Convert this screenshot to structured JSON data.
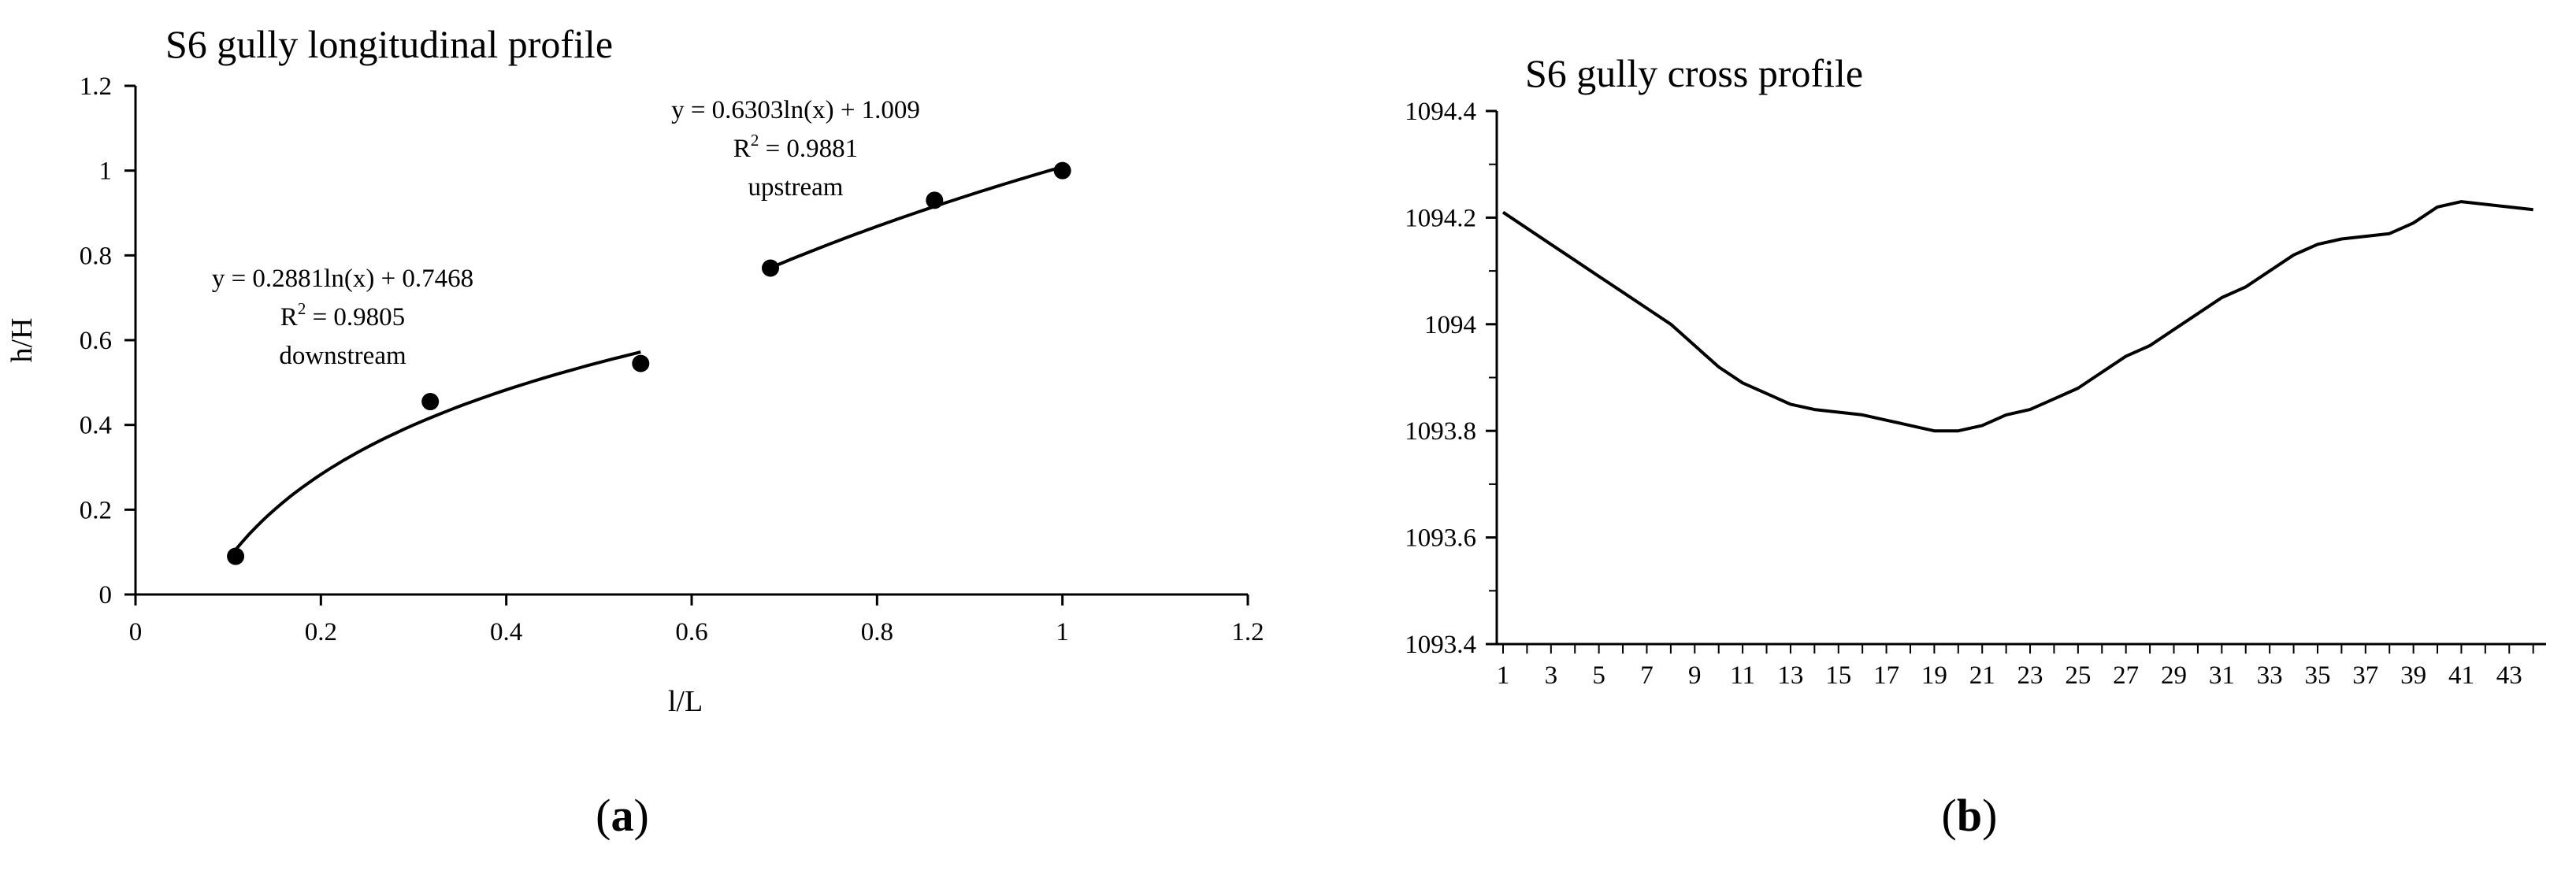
{
  "chart_data": [
    {
      "type": "scatter",
      "title": "S6 gully longitudinal profile",
      "xlabel": "l/L",
      "ylabel": "h/H",
      "xlim": [
        0,
        1.2
      ],
      "ylim": [
        0,
        1.2
      ],
      "x_ticks": [
        "0",
        "0.2",
        "0.4",
        "0.6",
        "0.8",
        "1",
        "1.2"
      ],
      "y_ticks": [
        "0",
        "0.2",
        "0.4",
        "0.6",
        "0.8",
        "1",
        "1.2"
      ],
      "grid": false,
      "series": [
        {
          "points": [
            [
              0.108,
              0.09
            ],
            [
              0.318,
              0.455
            ],
            [
              0.545,
              0.545
            ],
            [
              0.685,
              0.77
            ],
            [
              0.862,
              0.93
            ],
            [
              1.0,
              1.0
            ]
          ]
        }
      ],
      "trendlines": [
        {
          "a": 0.2881,
          "b": 0.7468,
          "x_range": [
            0.108,
            0.545
          ],
          "equation": "y = 0.2881ln(x) + 0.7468",
          "r2_label": "R",
          "r2_value": " = 0.9805",
          "label": "downstream"
        },
        {
          "a": 0.6303,
          "b": 1.009,
          "x_range": [
            0.685,
            1.0
          ],
          "equation": "y = 0.6303ln(x) + 1.009",
          "r2_label": "R",
          "r2_value": " = 0.9881",
          "label": "upstream"
        }
      ],
      "panel_label": "a"
    },
    {
      "type": "line",
      "title": "S6 gully cross profile",
      "ylim": [
        1093.4,
        1094.4
      ],
      "y_ticks": [
        "1093.4",
        "1093.6",
        "1093.8",
        "1094",
        "1094.2",
        "1094.4"
      ],
      "x_ticks": [
        "1",
        "3",
        "5",
        "7",
        "9",
        "11",
        "13",
        "15",
        "17",
        "19",
        "21",
        "23",
        "25",
        "27",
        "29",
        "31",
        "33",
        "35",
        "37",
        "39",
        "41",
        "43"
      ],
      "grid": false,
      "x": [
        1,
        2,
        3,
        4,
        5,
        6,
        7,
        8,
        9,
        10,
        11,
        12,
        13,
        14,
        15,
        16,
        17,
        18,
        19,
        20,
        21,
        22,
        23,
        24,
        25,
        26,
        27,
        28,
        29,
        30,
        31,
        32,
        33,
        34,
        35,
        36,
        37,
        38,
        39,
        40,
        41,
        42,
        43,
        44
      ],
      "values": [
        1094.21,
        1094.18,
        1094.15,
        1094.12,
        1094.09,
        1094.06,
        1094.03,
        1094.0,
        1093.96,
        1093.92,
        1093.89,
        1093.87,
        1093.85,
        1093.84,
        1093.835,
        1093.83,
        1093.82,
        1093.81,
        1093.8,
        1093.8,
        1093.81,
        1093.83,
        1093.84,
        1093.86,
        1093.88,
        1093.91,
        1093.94,
        1093.96,
        1093.99,
        1094.02,
        1094.05,
        1094.07,
        1094.1,
        1094.13,
        1094.15,
        1094.16,
        1094.165,
        1094.17,
        1094.19,
        1094.22,
        1094.23,
        1094.225,
        1094.22,
        1094.215
      ],
      "panel_label": "b"
    }
  ]
}
